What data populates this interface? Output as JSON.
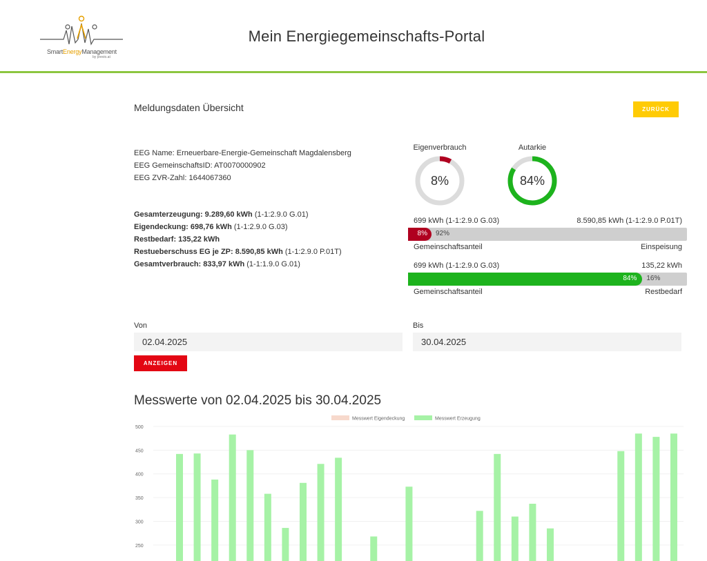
{
  "header": {
    "logo_text_a": "Smart",
    "logo_text_b": "Energy",
    "logo_text_c": "Management",
    "logo_sub": "by previo.at",
    "title": "Mein Energiegemeinschafts-Portal"
  },
  "overview": {
    "title": "Meldungsdaten Übersicht",
    "back_label": "ZURÜCK"
  },
  "eeg": {
    "name": "EEG Name: Erneuerbare-Energie-Gemeinschaft Magdalensberg",
    "community_id": "EEG GemeinschaftsID: AT0070000902",
    "zvr": "EEG ZVR-Zahl: 1644067360"
  },
  "totals": {
    "production_label": "Gesamterzeugung: 9.289,60 kWh",
    "production_code": " (1-1:2.9.0 G.01)",
    "self_cover_label": "Eigendeckung: 698,76 kWh",
    "self_cover_code": " (1-1:2.9.0 G.03)",
    "remaining_label": "Restbedarf: 135,22 kWh",
    "surplus_label": "Restueberschuss EG je ZP: 8.590,85 kWh",
    "surplus_code": " (1-1:2.9.0 P.01T)",
    "consumption_label": "Gesamtverbrauch: 833,97 kWh",
    "consumption_code": " (1-1:1.9.0 G.01)"
  },
  "gauges": [
    {
      "label": "Eigenverbrauch",
      "value_text": "8%",
      "fraction": 0.08,
      "color": "#b00020"
    },
    {
      "label": "Autarkie",
      "value_text": "84%",
      "fraction": 0.84,
      "color": "#1db31d"
    }
  ],
  "bars": [
    {
      "left_top": "699 kWh (1-1:2.9.0 G.03)",
      "right_top": "8.590,85 kWh (1-1:2.9.0 P.01T)",
      "fill_text": "8%",
      "rest_text": "92%",
      "fraction": 0.08,
      "color": "#b00020",
      "left_bottom": "Gemeinschaftsanteil",
      "right_bottom": "Einspeisung"
    },
    {
      "left_top": "699 kWh (1-1:2.9.0 G.03)",
      "right_top": "135,22 kWh",
      "fill_text": "84%",
      "rest_text": "16%",
      "fraction": 0.84,
      "color": "#1db31d",
      "left_bottom": "Gemeinschaftsanteil",
      "right_bottom": "Restbedarf"
    }
  ],
  "dates": {
    "from_label": "Von",
    "from_value": "02.04.2025",
    "to_label": "Bis",
    "to_value": "30.04.2025",
    "show_label": "ANZEIGEN"
  },
  "chart_title": "Messwerte von 02.04.2025 bis 30.04.2025",
  "chart_data": {
    "type": "bar",
    "title": "",
    "xlabel": "",
    "ylabel": "",
    "ylim": [
      225,
      500
    ],
    "yticks": [
      250,
      300,
      350,
      400,
      450,
      500
    ],
    "legend_position": "top",
    "series": [
      {
        "name": "Messwert Eigendeckung",
        "color": "#f7d9cc",
        "values": []
      },
      {
        "name": "Messwert Erzeugung",
        "color": "#a6f2a6",
        "values": [
          442,
          443,
          388,
          483,
          450,
          358,
          286,
          381,
          421,
          434,
          null,
          268,
          null,
          373,
          null,
          null,
          null,
          322,
          442,
          310,
          337,
          285,
          null,
          null,
          null,
          448,
          485,
          478,
          485
        ]
      }
    ]
  }
}
